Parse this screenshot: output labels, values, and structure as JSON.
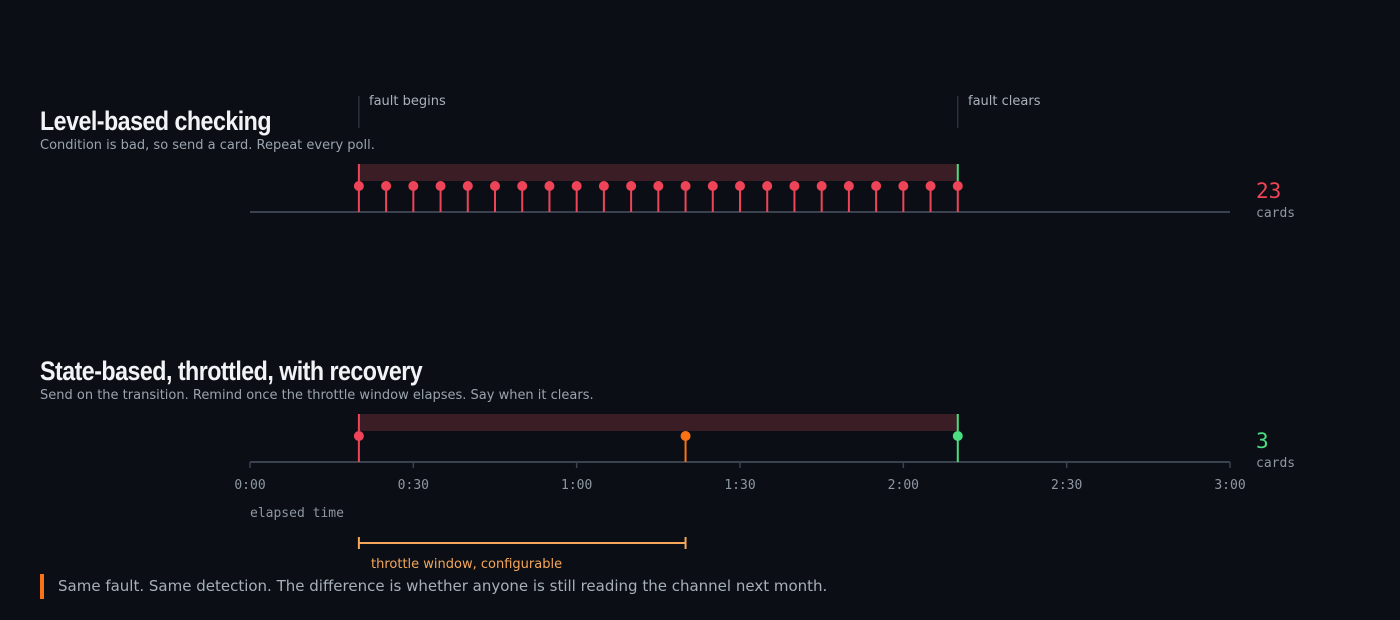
{
  "markers": {
    "fault_begins": "fault begins",
    "fault_clears": "fault clears"
  },
  "level": {
    "title": "Level-based checking",
    "subtitle": "Condition is bad, so send a card. Repeat every poll.",
    "count": "23",
    "count_unit": "cards",
    "fault_start_s": 20,
    "fault_end_s": 130,
    "poll_interval_s": 5
  },
  "state": {
    "title": "State-based, throttled, with recovery",
    "subtitle": "Send on the transition. Remind once the throttle window elapses. Say when it clears.",
    "count": "3",
    "count_unit": "cards",
    "events": [
      {
        "t_s": 20,
        "kind": "alert"
      },
      {
        "t_s": 80,
        "kind": "reminder"
      },
      {
        "t_s": 130,
        "kind": "recovery"
      }
    ]
  },
  "axis": {
    "min_s": 0,
    "max_s": 180,
    "ticks": [
      "0:00",
      "0:30",
      "1:00",
      "1:30",
      "2:00",
      "2:30",
      "3:00"
    ],
    "label": "elapsed time"
  },
  "throttle": {
    "start_s": 20,
    "end_s": 80,
    "label": "throttle window, configurable"
  },
  "callout": "Same fault. Same detection. The difference is whether anyone is still reading the channel next month.",
  "colors": {
    "alert": "#ef4458",
    "reminder": "#f97316",
    "recovery": "#4ade80",
    "fault_band": "#3b1d26",
    "axis": "#3a4250",
    "throttle": "#f5a65b"
  }
}
